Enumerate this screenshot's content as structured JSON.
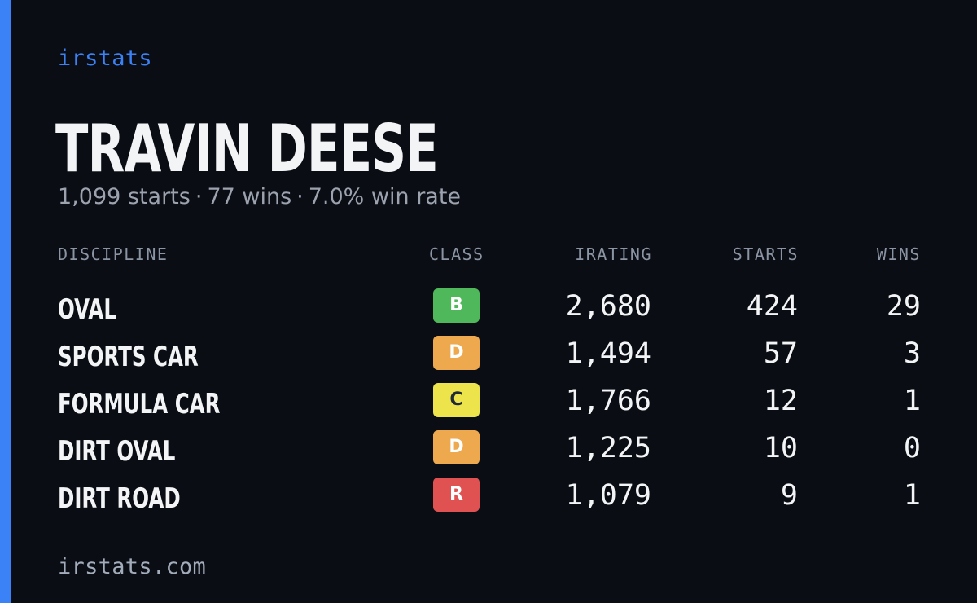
{
  "brand": "irstats",
  "driver": {
    "name": "TRAVIN DEESE",
    "starts_text": "1,099 starts",
    "wins_text": "77 wins",
    "winrate_text": "7.0% win rate",
    "separator": "·"
  },
  "table": {
    "headers": {
      "discipline": "DISCIPLINE",
      "class": "CLASS",
      "irating": "IRATING",
      "starts": "STARTS",
      "wins": "WINS"
    },
    "rows": [
      {
        "discipline": "OVAL",
        "class": "B",
        "class_color": "#4fb85a",
        "class_text_color": "#ffffff",
        "irating": "2,680",
        "starts": "424",
        "wins": "29"
      },
      {
        "discipline": "SPORTS CAR",
        "class": "D",
        "class_color": "#eea94f",
        "class_text_color": "#ffffff",
        "irating": "1,494",
        "starts": "57",
        "wins": "3"
      },
      {
        "discipline": "FORMULA CAR",
        "class": "C",
        "class_color": "#ece44a",
        "class_text_color": "#1f2937",
        "irating": "1,766",
        "starts": "12",
        "wins": "1"
      },
      {
        "discipline": "DIRT OVAL",
        "class": "D",
        "class_color": "#eea94f",
        "class_text_color": "#ffffff",
        "irating": "1,225",
        "starts": "10",
        "wins": "0"
      },
      {
        "discipline": "DIRT ROAD",
        "class": "R",
        "class_color": "#e05252",
        "class_text_color": "#ffffff",
        "irating": "1,079",
        "starts": "9",
        "wins": "1"
      }
    ]
  },
  "footer": "irstats.com",
  "colors": {
    "background": "#0a0d14",
    "accent": "#3b82f6"
  }
}
